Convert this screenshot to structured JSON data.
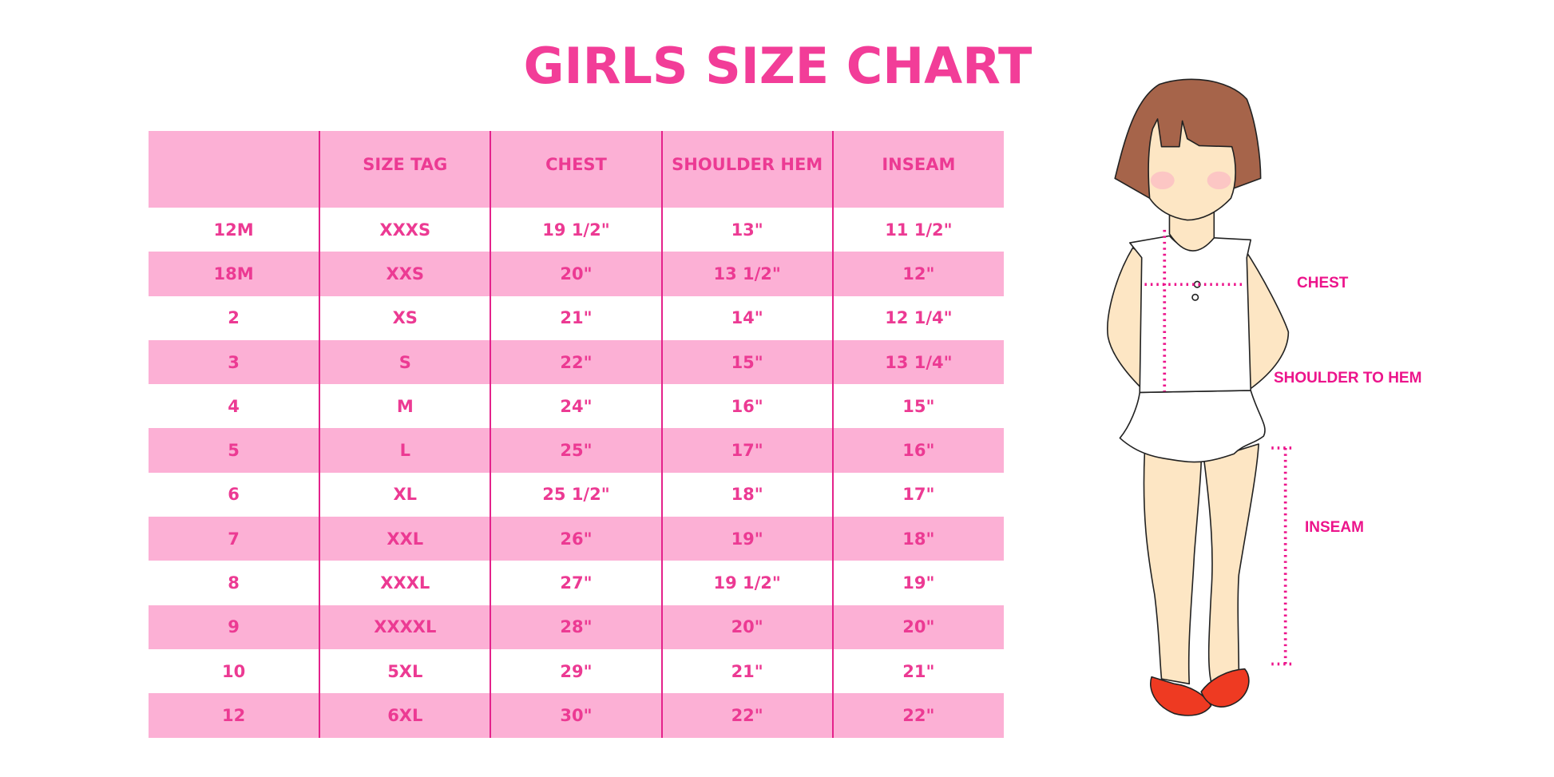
{
  "title": "GIRLS SIZE CHART",
  "table": {
    "headers": [
      "",
      "SIZE TAG",
      "CHEST",
      "SHOULDER HEM",
      "INSEAM"
    ],
    "rows": [
      [
        "12M",
        "XXXS",
        "19 1/2\"",
        "13\"",
        "11 1/2\""
      ],
      [
        "18M",
        "XXS",
        "20\"",
        "13 1/2\"",
        "12\""
      ],
      [
        "2",
        "XS",
        "21\"",
        "14\"",
        "12 1/4\""
      ],
      [
        "3",
        "S",
        "22\"",
        "15\"",
        "13 1/4\""
      ],
      [
        "4",
        "M",
        "24\"",
        "16\"",
        "15\""
      ],
      [
        "5",
        "L",
        "25\"",
        "17\"",
        "16\""
      ],
      [
        "6",
        "XL",
        "25 1/2\"",
        "18\"",
        "17\""
      ],
      [
        "7",
        "XXL",
        "26\"",
        "19\"",
        "18\""
      ],
      [
        "8",
        "XXXL",
        "27\"",
        "19 1/2\"",
        "19\""
      ],
      [
        "9",
        "XXXXL",
        "28\"",
        "20\"",
        "20\""
      ],
      [
        "10",
        "5XL",
        "29\"",
        "21\"",
        "21\""
      ],
      [
        "12",
        "6XL",
        "30\"",
        "22\"",
        "22\""
      ]
    ]
  },
  "diagram": {
    "chest_label": "CHEST",
    "shoulder_label": "SHOULDER TO HEM",
    "inseam_label": "INSEAM"
  },
  "colors": {
    "accent": "#ec3a93",
    "row_band": "#fcb0d5",
    "divider": "#e4228b"
  }
}
